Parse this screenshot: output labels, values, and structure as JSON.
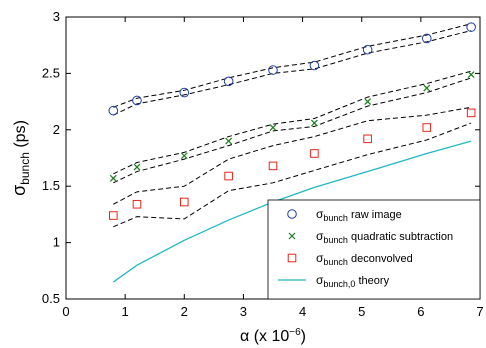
{
  "chart_data": {
    "type": "line",
    "xlabel": {
      "base": "α (x 10",
      "sup": "−6",
      "tail": ")"
    },
    "ylabel": {
      "base": "σ",
      "sub": "bunch",
      "tail": " (ps)"
    },
    "xlim": [
      0,
      7
    ],
    "ylim": [
      0.5,
      3
    ],
    "xticks": [
      0,
      1,
      2,
      3,
      4,
      5,
      6,
      7
    ],
    "yticks": [
      0.5,
      1,
      1.5,
      2,
      2.5,
      3
    ],
    "xtick_labels": [
      "0",
      "1",
      "2",
      "3",
      "4",
      "5",
      "6",
      "7"
    ],
    "ytick_labels": [
      "0.5",
      "1",
      "1.5",
      "2",
      "2.5",
      "3"
    ],
    "grid": false,
    "legend_position": "bottom-right",
    "series": [
      {
        "name": "raw image",
        "legend_label": {
          "base": "σ",
          "sub": "bunch",
          "tail": " raw image"
        },
        "marker": "circle",
        "color": "#1f3fa6",
        "x": [
          0.8,
          1.2,
          2.0,
          2.75,
          3.5,
          4.2,
          5.1,
          6.1,
          6.85
        ],
        "y": [
          2.17,
          2.26,
          2.33,
          2.43,
          2.53,
          2.57,
          2.71,
          2.81,
          2.91
        ],
        "band_upper": [
          2.2,
          2.28,
          2.35,
          2.46,
          2.55,
          2.6,
          2.74,
          2.84,
          2.94
        ],
        "band_lower": [
          2.13,
          2.23,
          2.31,
          2.4,
          2.5,
          2.54,
          2.68,
          2.78,
          2.88
        ]
      },
      {
        "name": "quadratic subtraction",
        "legend_label": {
          "base": "σ",
          "sub": "bunch",
          "tail": " quadratic subtraction"
        },
        "marker": "x",
        "color": "#1a7a1a",
        "x": [
          0.8,
          1.2,
          2.0,
          2.75,
          3.5,
          4.2,
          5.1,
          6.1,
          6.85
        ],
        "y": [
          1.57,
          1.67,
          1.77,
          1.9,
          2.02,
          2.06,
          2.25,
          2.37,
          2.49
        ],
        "band_upper": [
          1.61,
          1.71,
          1.8,
          1.94,
          2.05,
          2.1,
          2.29,
          2.41,
          2.52
        ],
        "band_lower": [
          1.53,
          1.63,
          1.74,
          1.86,
          1.99,
          2.03,
          2.21,
          2.33,
          2.46
        ]
      },
      {
        "name": "deconvolved",
        "legend_label": {
          "base": "σ",
          "sub": "bunch",
          "tail": " deconvolved"
        },
        "marker": "square",
        "color": "#e8261c",
        "x": [
          0.8,
          1.2,
          2.0,
          2.75,
          3.5,
          4.2,
          5.1,
          6.1,
          6.85
        ],
        "y": [
          1.24,
          1.34,
          1.36,
          1.59,
          1.68,
          1.79,
          1.92,
          2.02,
          2.15
        ],
        "band_upper": [
          1.34,
          1.45,
          1.5,
          1.74,
          1.86,
          1.94,
          2.08,
          2.13,
          2.2
        ],
        "band_lower": [
          1.14,
          1.23,
          1.21,
          1.46,
          1.53,
          1.64,
          1.78,
          1.91,
          2.06
        ]
      },
      {
        "name": "theory",
        "legend_label": {
          "base": "σ",
          "sub": "bunch,0",
          "tail": " theory"
        },
        "marker": "line",
        "color": "#20b8c4",
        "x": [
          0.8,
          1.2,
          2.0,
          2.75,
          3.5,
          4.2,
          5.1,
          6.1,
          6.85
        ],
        "y": [
          0.65,
          0.8,
          1.02,
          1.2,
          1.36,
          1.49,
          1.63,
          1.79,
          1.9
        ]
      }
    ]
  }
}
